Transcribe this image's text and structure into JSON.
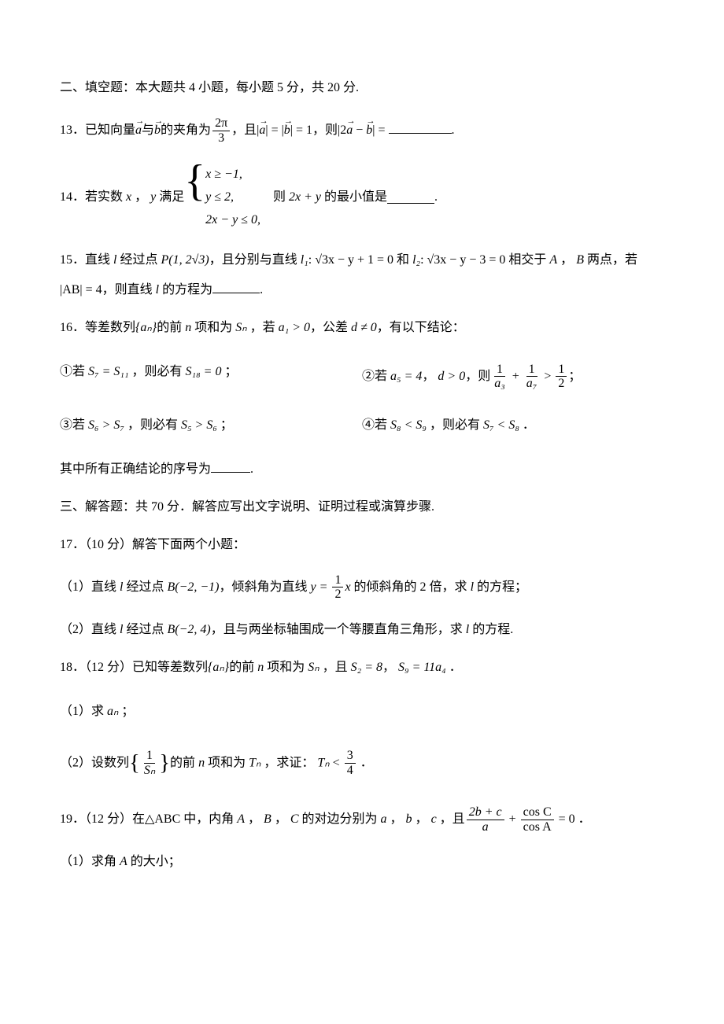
{
  "section2": {
    "heading": "二、填空题：本大题共 4 小题，每小题 5 分，共 20 分."
  },
  "q13": {
    "num": "13．",
    "t1": "已知向量",
    "a": "a",
    "t2": "与",
    "b": "b",
    "t3": "的夹角为",
    "frac_n": "2π",
    "frac_d": "3",
    "t4": "，且",
    "eq1_l": "|a|",
    "eq1_m": " = ",
    "eq1_r": "|b|",
    "eq1_v": " = 1",
    "t5": "，则",
    "eq2_l": "|2a − b|",
    "eq2_m": " = ",
    "t6": "."
  },
  "q14": {
    "num": "14．",
    "t1": "若实数",
    "x": "x",
    "t2": "，",
    "y": "y",
    "t3": "满足",
    "c1": "x ≥ −1,",
    "c2": "y ≤ 2,",
    "c3": "2x − y ≤ 0,",
    "t4": "则",
    "expr": "2x + y",
    "t5": "的最小值是",
    "t6": "."
  },
  "q15": {
    "num": "15．",
    "t1": "直线",
    "l": "l",
    "t2": "经过点",
    "P": "P(1, 2√3)",
    "t3": "，且分别与直线",
    "l1": "l₁",
    "l1eq": ": √3x − y + 1 = 0",
    "t4": "和",
    "l2": "l₂",
    "l2eq": ": √3x − y − 3 = 0",
    "t5": "相交于",
    "A": "A",
    "t6": "，",
    "B": "B",
    "t7": "两点，若",
    "ab": "|AB| = 4",
    "t8": "，则直线",
    "t9": "的方程为",
    "t10": "."
  },
  "q16": {
    "num": "16．",
    "t1": "等差数列",
    "an": "{aₙ}",
    "t2": "的前",
    "n": "n",
    "t3": "项和为",
    "Sn": "Sₙ",
    "t4": "，若",
    "a1": "a₁ > 0",
    "t5": "，公差",
    "d": "d ≠ 0",
    "t6": "，有以下结论：",
    "s1_n": "①若",
    "s1_eq1": "S₇ = S₁₁",
    "s1_t": "，则必有",
    "s1_eq2": "S₁₈ = 0",
    "s1_e": "；",
    "s2_n": "②若",
    "s2_eq1": "a₅ = 4",
    "s2_t1": "，",
    "s2_eq2": "d > 0",
    "s2_t2": "，则",
    "s2_f1n": "1",
    "s2_f1d": "a₃",
    "s2_p": " + ",
    "s2_f2n": "1",
    "s2_f2d": "a₇",
    "s2_gt": " > ",
    "s2_f3n": "1",
    "s2_f3d": "2",
    "s2_e": "；",
    "s3_n": "③若",
    "s3_eq1": "S₆ > S₇",
    "s3_t": "，则必有",
    "s3_eq2": "S₅ > S₆",
    "s3_e": "；",
    "s4_n": "④若",
    "s4_eq1": "S₈ < S₉",
    "s4_t": "，则必有",
    "s4_eq2": "S₇ < S₈",
    "s4_e": "．",
    "conclusion": "其中所有正确结论的序号为",
    "conclusion_e": "."
  },
  "section3": {
    "heading": "三、解答题：共 70 分．解答应写出文字说明、证明过程或演算步骤."
  },
  "q17": {
    "num": "17．",
    "pts": "（10 分）解答下面两个小题：",
    "p1_n": "（1）直线",
    "l": "l",
    "p1_t1": "经过点",
    "B1": "B(−2, −1)",
    "p1_t2": "，倾斜角为直线",
    "p1_eq": "y = ",
    "p1_fn": "1",
    "p1_fd": "2",
    "p1_x": "x",
    "p1_t3": "的倾斜角的 2 倍，求",
    "p1_t4": "的方程；",
    "p2_n": "（2）直线",
    "p2_t1": "经过点",
    "B2": "B(−2, 4)",
    "p2_t2": "，且与两坐标轴围成一个等腰直角三角形，求",
    "p2_t3": "的方程."
  },
  "q18": {
    "num": "18．",
    "pts": "（12 分）已知等差数列",
    "an": "{aₙ}",
    "t1": "的前",
    "n": "n",
    "t2": "项和为",
    "Sn": "Sₙ",
    "t3": "，且",
    "eq1": "S₂ = 8",
    "t4": "，",
    "eq2": "S₉ = 11a₄",
    "t5": "．",
    "p1": "（1）求",
    "p1_an": "aₙ",
    "p1_e": "；",
    "p2": "（2）设数列",
    "p2_fn": "1",
    "p2_fd": "Sₙ",
    "p2_t1": "的前",
    "p2_t2": "项和为",
    "Tn": "Tₙ",
    "p2_t3": "，求证：",
    "p2_ineq_l": "Tₙ",
    "p2_lt": " < ",
    "p2_f3n": "3",
    "p2_f3d": "4",
    "p2_e": "．"
  },
  "q19": {
    "num": "19．",
    "pts": "（12 分）在",
    "tri": "△ABC",
    "t1": "中，内角",
    "A": "A",
    "t2": "，",
    "B": "B",
    "t3": "，",
    "C": "C",
    "t4": "的对边分别为",
    "a": "a",
    "t5": "，",
    "b": "b",
    "t6": "，",
    "c": "c",
    "t7": "，且",
    "f1n": "2b + c",
    "f1d": "a",
    "plus": " + ",
    "f2n": "cos C",
    "f2d": "cos A",
    "eq": " = 0",
    "t8": "．",
    "p1": "（1）求角",
    "p1_t": "的大小；"
  }
}
